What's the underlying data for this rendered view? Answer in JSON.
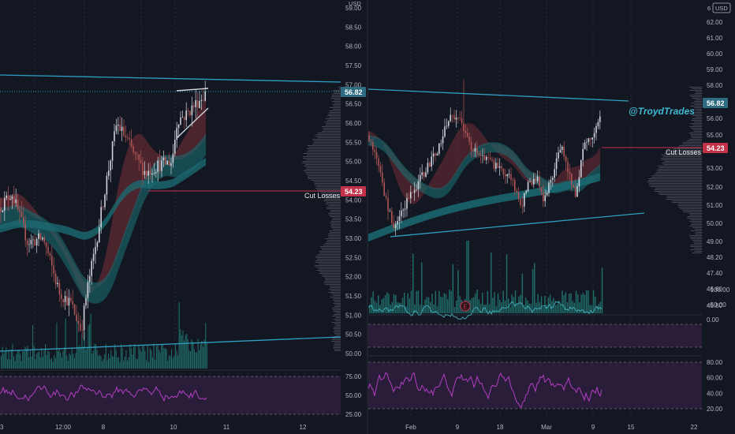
{
  "left_chart": {
    "axis": {
      "currency": "USD",
      "ticks": [
        "59.00",
        "58.50",
        "58.00",
        "57.50",
        "57.00",
        "56.50",
        "56.00",
        "55.50",
        "55.00",
        "54.50",
        "54.00",
        "53.50",
        "53.00",
        "52.50",
        "52.00",
        "51.50",
        "51.00",
        "50.50",
        "50.00"
      ],
      "tick_values": [
        59.0,
        58.5,
        58.0,
        57.5,
        57.0,
        56.5,
        56.0,
        55.5,
        55.0,
        54.5,
        54.0,
        53.5,
        53.0,
        52.5,
        52.0,
        51.5,
        51.0,
        50.5,
        50.0
      ],
      "ylim": [
        49.5,
        59.2
      ]
    },
    "last_price_label": "56.82",
    "stop_label": "54.23",
    "stop_text": "Cut Losses",
    "time_labels": [
      "3",
      "12:00",
      "8",
      "10",
      "11",
      "12"
    ],
    "rsi_ticks": [
      "75.00",
      "50.00",
      "25.00"
    ],
    "rsi_tick_values": [
      75,
      50,
      25
    ]
  },
  "right_chart": {
    "axis": {
      "currency": "USD",
      "currency_prefix": "6",
      "ticks": [
        "62.00",
        "61.00",
        "60.00",
        "59.00",
        "58.00",
        "57.00",
        "56.00",
        "55.00",
        "53.00",
        "52.00",
        "51.00",
        "50.00",
        "49.00",
        "48.20",
        "47.40",
        "46.60",
        "45.80"
      ],
      "tick_values": [
        62.0,
        61.0,
        60.0,
        59.0,
        58.0,
        57.0,
        56.0,
        55.0,
        53.0,
        52.0,
        51.0,
        50.0,
        49.0,
        48.2,
        47.4,
        46.6,
        45.8
      ]
    },
    "last_price_label": "56.82",
    "stop_label": "54.23",
    "stop_text": "Cut Losses",
    "watermark": "@TroydTrades",
    "earnings_marker": "E",
    "time_labels": [
      "Feb",
      "9",
      "18",
      "Mar",
      "9",
      "15",
      "22"
    ],
    "momentum_ticks": [
      "0.00",
      "−50.00",
      "−100.00"
    ],
    "momentum_tick_values": [
      0,
      -50,
      -100
    ],
    "rsi_ticks": [
      "80.00",
      "60.00",
      "40.00",
      "20.00"
    ],
    "rsi_tick_values": [
      80,
      60,
      40,
      20
    ]
  },
  "colors": {
    "background": "#131722",
    "axis_text": "#b2b5be",
    "trendline": "#2f9fc0",
    "bull_candle": "#d1d4dc",
    "bear_candle": "#b05555",
    "stop_line": "#c2334a",
    "stop_badge": "#c2334a",
    "price_badge": "#2f6b80",
    "volume": "#1f6b68",
    "ribbon_teal": "#1b6a72",
    "ribbon_red": "#7a2f36",
    "rsi_line": "#b33ec2",
    "rsi_band": "#2a1d3a",
    "watermark": "#3fb8d0"
  }
}
